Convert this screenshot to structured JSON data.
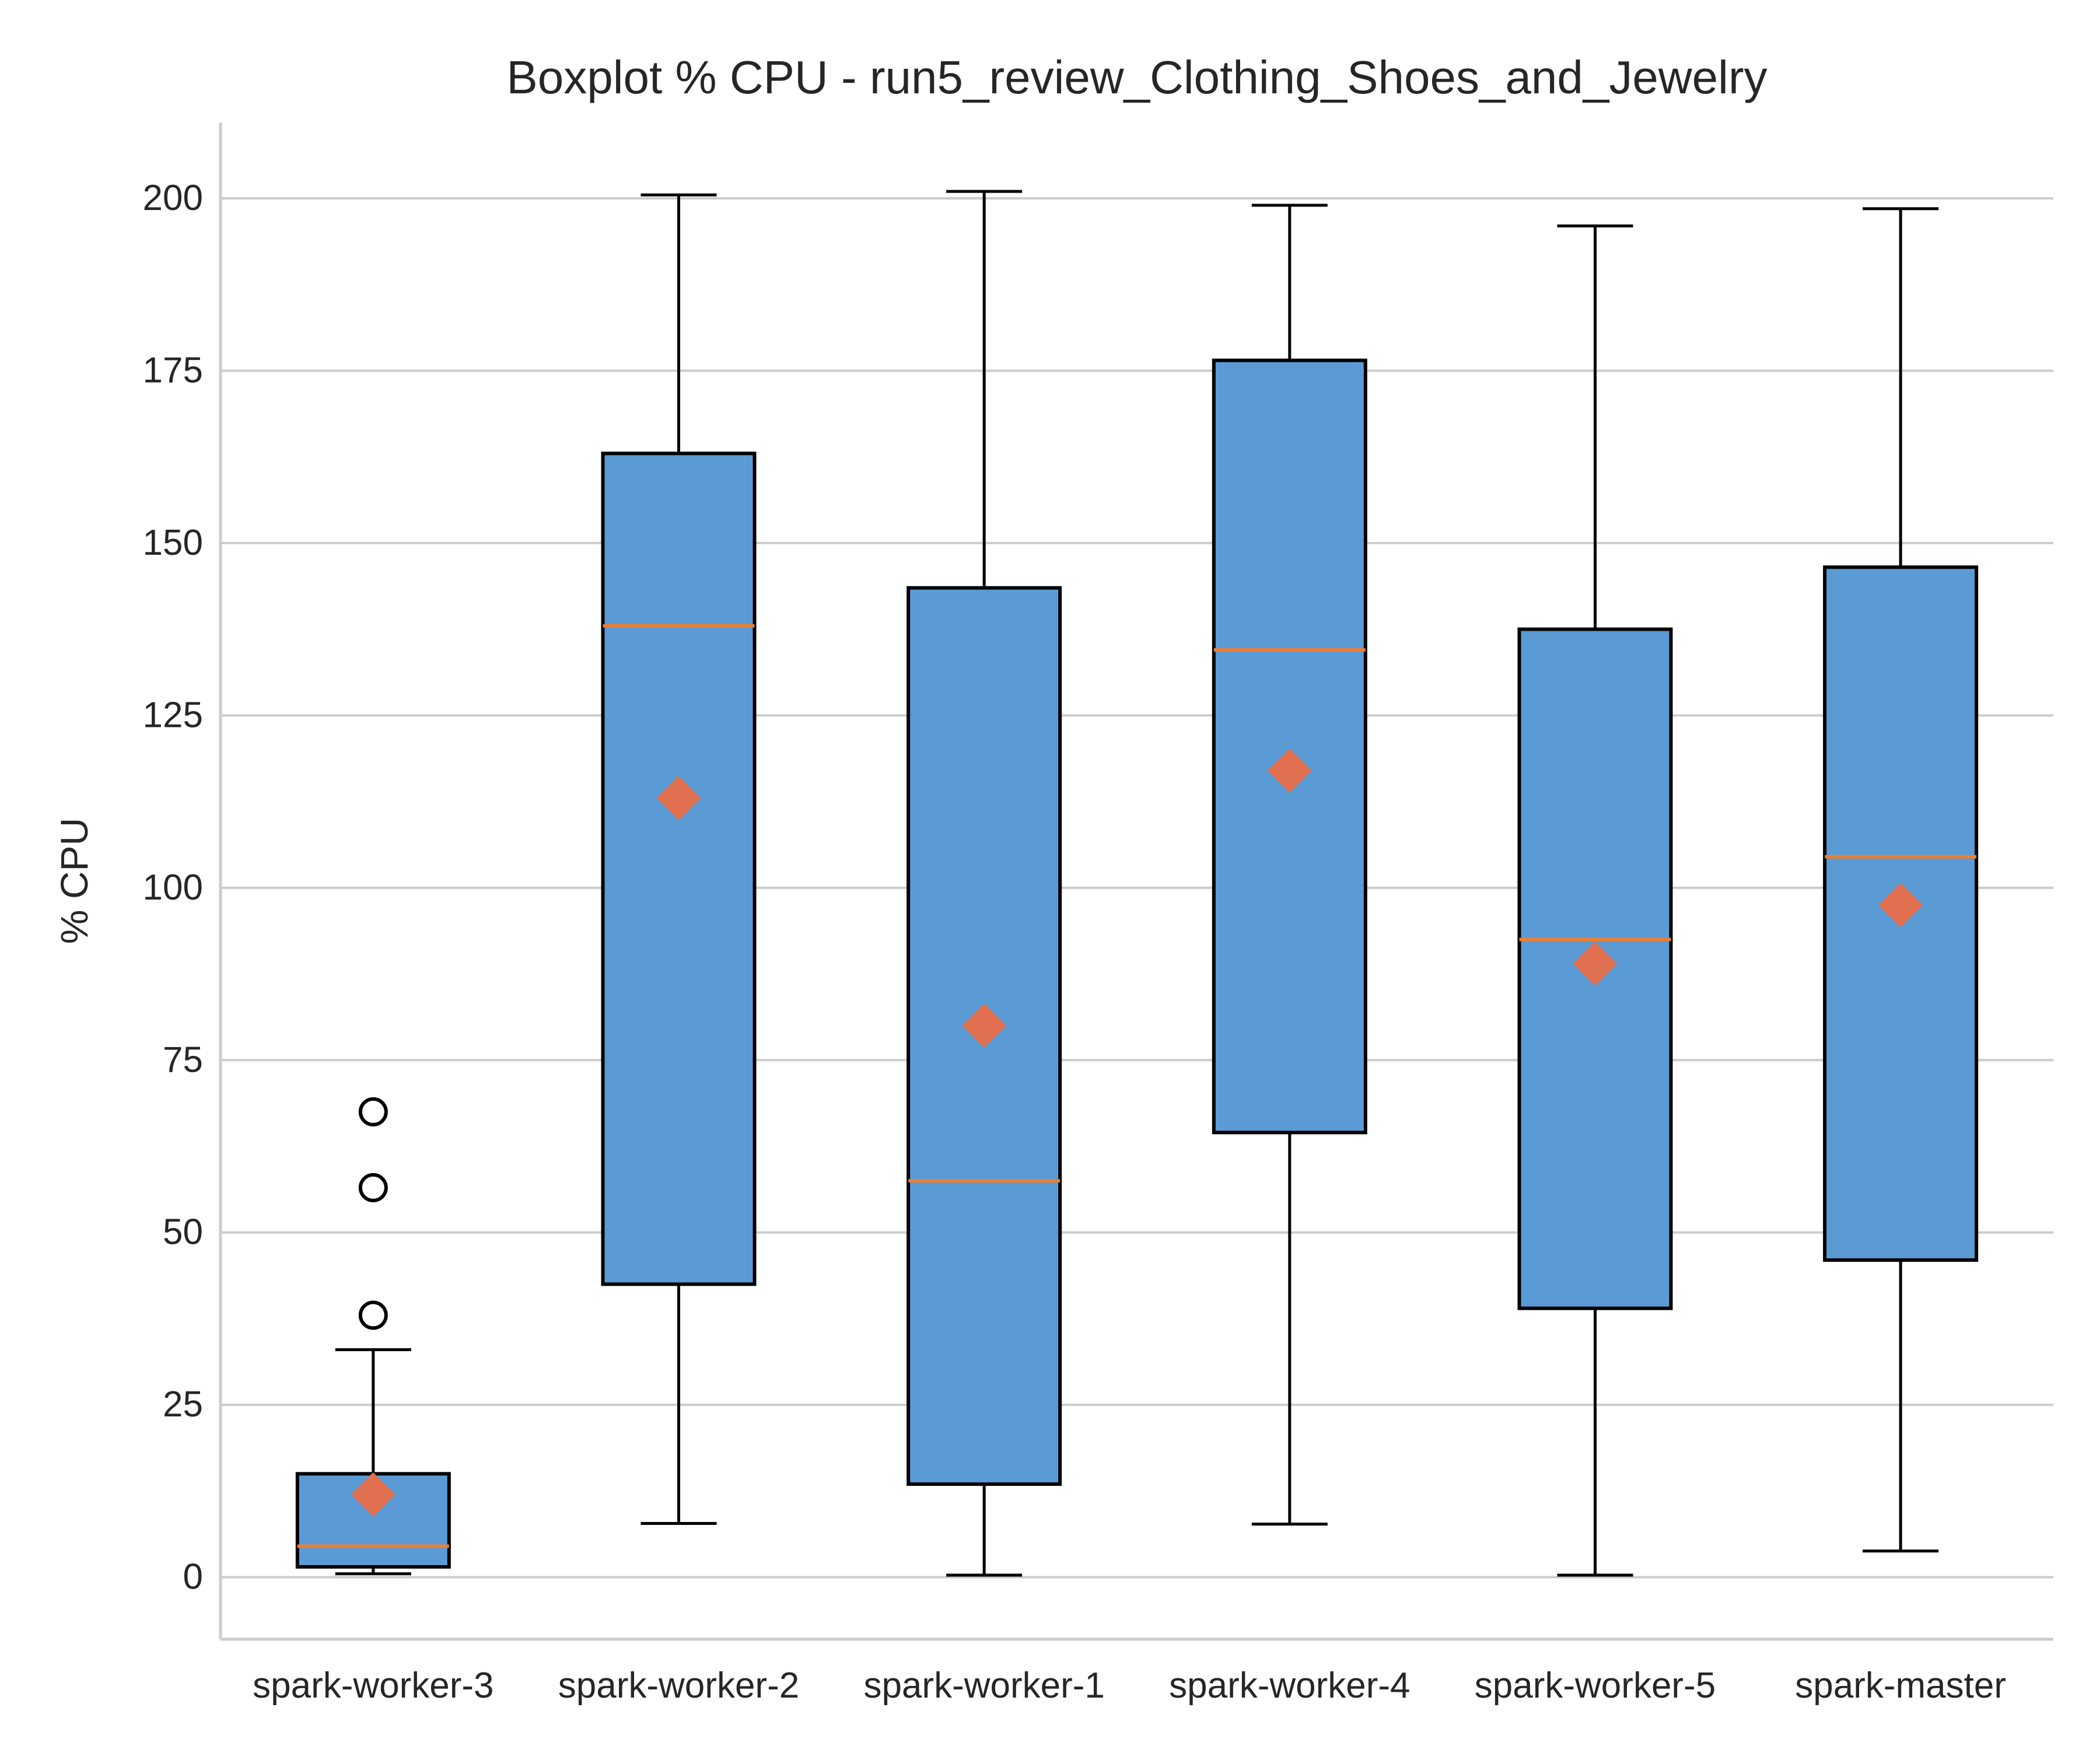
{
  "chart_data": {
    "type": "boxplot",
    "title": "Boxplot % CPU - run5_review_Clothing_Shoes_and_Jewelry",
    "xlabel": "",
    "ylabel": "% CPU",
    "ylim": [
      -9,
      211
    ],
    "yticks": [
      0,
      25,
      50,
      75,
      100,
      125,
      150,
      175,
      200
    ],
    "grid": "horizontal",
    "colors": {
      "box_fill": "#5b9bd5",
      "box_edge": "#000000",
      "median": "#ed7d31",
      "mean_marker": "#e0704f",
      "grid": "#cccccc",
      "axis": "#cccccc",
      "text": "#262626"
    },
    "categories": [
      "spark-worker-3",
      "spark-worker-2",
      "spark-worker-1",
      "spark-worker-4",
      "spark-worker-5",
      "spark-master"
    ],
    "boxes": [
      {
        "whisker_low": 0.5,
        "q1": 1.5,
        "median": 4.5,
        "q3": 15.0,
        "whisker_high": 33.0,
        "mean": 12.0,
        "outliers": [
          38.0,
          56.5,
          67.5
        ]
      },
      {
        "whisker_low": 7.8,
        "q1": 42.5,
        "median": 138.0,
        "q3": 163.0,
        "whisker_high": 200.5,
        "mean": 113.0,
        "outliers": []
      },
      {
        "whisker_low": 0.3,
        "q1": 13.5,
        "median": 57.5,
        "q3": 143.5,
        "whisker_high": 201.0,
        "mean": 80.0,
        "outliers": []
      },
      {
        "whisker_low": 7.7,
        "q1": 64.5,
        "median": 134.5,
        "q3": 176.5,
        "whisker_high": 199.0,
        "mean": 117.0,
        "outliers": []
      },
      {
        "whisker_low": 0.3,
        "q1": 39.0,
        "median": 92.5,
        "q3": 137.5,
        "whisker_high": 196.0,
        "mean": 89.0,
        "outliers": []
      },
      {
        "whisker_low": 3.8,
        "q1": 46.0,
        "median": 104.5,
        "q3": 146.5,
        "whisker_high": 198.5,
        "mean": 97.5,
        "outliers": []
      }
    ]
  }
}
